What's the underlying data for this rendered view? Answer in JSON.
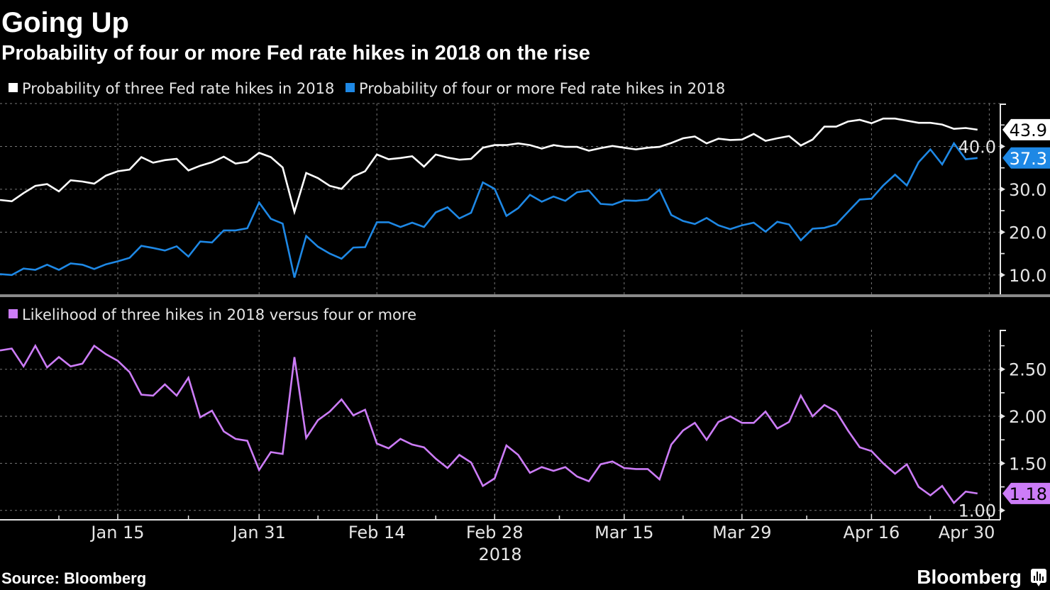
{
  "title": "Going Up",
  "subtitle": "Probability of four or more Fed rate hikes in 2018 on the rise",
  "source": "Source: Bloomberg",
  "brand": "Bloomberg",
  "colors": {
    "background": "#000000",
    "three_hikes": "#ffffff",
    "four_hikes": "#1e88e5",
    "ratio": "#cc7cf7"
  },
  "chart_data": [
    {
      "type": "line",
      "legend_placement": "top-left",
      "grid": true,
      "y_axis_side": "right",
      "ylim": [
        5.5,
        50
      ],
      "yticks": [
        "10.0",
        "20.0",
        "30.0",
        "40.0"
      ],
      "ytick_values": [
        10,
        20,
        30,
        40
      ],
      "series": [
        {
          "name": "Probability of three Fed rate hikes in 2018",
          "color": "#ffffff",
          "last_label": "43.9",
          "label_color": "#000000",
          "values": [
            27.5,
            27.2,
            29.1,
            30.8,
            31.2,
            29.5,
            32.1,
            31.8,
            31.3,
            33.2,
            34.2,
            34.6,
            37.5,
            36.2,
            36.8,
            37.1,
            34.4,
            35.5,
            36.3,
            37.6,
            36.0,
            36.4,
            38.5,
            37.5,
            35.1,
            24.7,
            33.8,
            32.6,
            30.8,
            30.1,
            33.0,
            34.2,
            38.1,
            37.0,
            37.3,
            37.7,
            35.3,
            38.1,
            37.4,
            36.9,
            37.1,
            39.7,
            40.3,
            40.3,
            40.7,
            40.3,
            39.5,
            40.3,
            39.9,
            39.9,
            39.0,
            39.6,
            40.1,
            39.7,
            39.3,
            39.7,
            39.9,
            40.8,
            41.9,
            42.3,
            40.7,
            41.8,
            41.5,
            41.6,
            42.9,
            41.3,
            41.9,
            42.4,
            40.2,
            41.6,
            44.6,
            44.6,
            45.8,
            46.2,
            45.4,
            46.5,
            46.5,
            46.0,
            45.5,
            45.5,
            45.1,
            44.1,
            44.3,
            43.9
          ]
        },
        {
          "name": "Probability of four or more Fed rate hikes in 2018",
          "color": "#1e88e5",
          "last_label": "37.3",
          "label_color": "#ffffff",
          "values": [
            10.2,
            10.0,
            11.5,
            11.2,
            12.4,
            11.2,
            12.7,
            12.4,
            11.4,
            12.5,
            13.2,
            14.0,
            16.8,
            16.3,
            15.7,
            16.7,
            14.3,
            17.8,
            17.6,
            20.4,
            20.4,
            20.9,
            26.9,
            23.1,
            22.0,
            9.4,
            19.1,
            16.6,
            15.0,
            13.8,
            16.4,
            16.5,
            22.3,
            22.3,
            21.2,
            22.2,
            21.2,
            24.6,
            25.8,
            23.2,
            24.5,
            31.6,
            30.1,
            23.8,
            25.6,
            28.7,
            27.1,
            28.3,
            27.3,
            29.3,
            29.7,
            26.6,
            26.4,
            27.4,
            27.3,
            27.6,
            29.9,
            24.0,
            22.6,
            21.9,
            23.3,
            21.6,
            20.7,
            21.6,
            22.2,
            20.1,
            22.4,
            21.8,
            18.1,
            20.8,
            21.0,
            21.8,
            24.7,
            27.6,
            27.8,
            30.9,
            33.4,
            30.9,
            36.3,
            39.3,
            35.8,
            40.7,
            37.0,
            37.3
          ]
        }
      ]
    },
    {
      "type": "line",
      "legend_placement": "top-left",
      "grid": true,
      "y_axis_side": "right",
      "ylim": [
        0.9,
        2.92
      ],
      "yticks": [
        "1.00",
        "1.50",
        "2.00",
        "2.50"
      ],
      "ytick_values": [
        1.0,
        1.5,
        2.0,
        2.5
      ],
      "xlabel": "2018",
      "xticks": [
        "Jan 15",
        "Jan 31",
        "Feb 14",
        "Feb 28",
        "Mar 15",
        "Mar 29",
        "Apr 16",
        "Apr 30"
      ],
      "xtick_dates": [
        "2018-01-15",
        "2018-01-31",
        "2018-02-14",
        "2018-02-28",
        "2018-03-15",
        "2018-03-29",
        "2018-04-16",
        "2018-04-30"
      ],
      "series": [
        {
          "name": "Likelihood of three hikes in 2018 versus four or more",
          "color": "#cc7cf7",
          "last_label": "1.18",
          "label_color": "#000000",
          "values": [
            2.7,
            2.72,
            2.53,
            2.75,
            2.52,
            2.63,
            2.53,
            2.56,
            2.75,
            2.66,
            2.59,
            2.47,
            2.23,
            2.22,
            2.34,
            2.22,
            2.41,
            1.99,
            2.06,
            1.84,
            1.76,
            1.74,
            1.43,
            1.62,
            1.6,
            2.63,
            1.77,
            1.96,
            2.05,
            2.18,
            2.01,
            2.07,
            1.71,
            1.66,
            1.76,
            1.7,
            1.67,
            1.55,
            1.45,
            1.59,
            1.51,
            1.26,
            1.34,
            1.69,
            1.59,
            1.4,
            1.46,
            1.42,
            1.46,
            1.36,
            1.31,
            1.49,
            1.52,
            1.45,
            1.44,
            1.44,
            1.33,
            1.7,
            1.85,
            1.93,
            1.75,
            1.94,
            2.0,
            1.93,
            1.93,
            2.05,
            1.87,
            1.94,
            2.22,
            2.0,
            2.12,
            2.05,
            1.85,
            1.67,
            1.63,
            1.5,
            1.39,
            1.49,
            1.25,
            1.16,
            1.26,
            1.08,
            1.2,
            1.18
          ]
        }
      ]
    }
  ],
  "x": [
    "2018-01-01",
    "2018-01-02",
    "2018-01-03",
    "2018-01-04",
    "2018-01-05",
    "2018-01-08",
    "2018-01-09",
    "2018-01-10",
    "2018-01-11",
    "2018-01-12",
    "2018-01-15",
    "2018-01-16",
    "2018-01-17",
    "2018-01-18",
    "2018-01-19",
    "2018-01-22",
    "2018-01-23",
    "2018-01-24",
    "2018-01-25",
    "2018-01-26",
    "2018-01-29",
    "2018-01-30",
    "2018-01-31",
    "2018-02-01",
    "2018-02-02",
    "2018-02-05",
    "2018-02-06",
    "2018-02-07",
    "2018-02-08",
    "2018-02-09",
    "2018-02-12",
    "2018-02-13",
    "2018-02-14",
    "2018-02-15",
    "2018-02-16",
    "2018-02-19",
    "2018-02-20",
    "2018-02-21",
    "2018-02-22",
    "2018-02-23",
    "2018-02-26",
    "2018-02-27",
    "2018-02-28",
    "2018-03-01",
    "2018-03-02",
    "2018-03-05",
    "2018-03-06",
    "2018-03-07",
    "2018-03-08",
    "2018-03-09",
    "2018-03-12",
    "2018-03-13",
    "2018-03-14",
    "2018-03-15",
    "2018-03-16",
    "2018-03-19",
    "2018-03-20",
    "2018-03-21",
    "2018-03-22",
    "2018-03-23",
    "2018-03-26",
    "2018-03-27",
    "2018-03-28",
    "2018-03-29",
    "2018-04-02",
    "2018-04-03",
    "2018-04-04",
    "2018-04-05",
    "2018-04-06",
    "2018-04-09",
    "2018-04-10",
    "2018-04-11",
    "2018-04-12",
    "2018-04-13",
    "2018-04-16",
    "2018-04-17",
    "2018-04-18",
    "2018-04-19",
    "2018-04-20",
    "2018-04-23",
    "2018-04-24",
    "2018-04-25",
    "2018-04-26",
    "2018-04-27"
  ]
}
